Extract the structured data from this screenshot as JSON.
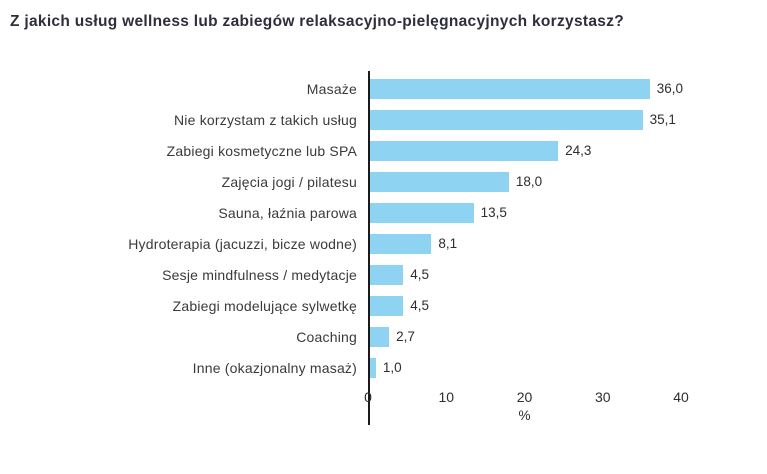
{
  "title": "Z jakich usług wellness lub zabiegów relaksacyjno-pielęgnacyjnych korzystasz?",
  "chart_data": {
    "type": "bar",
    "orientation": "horizontal",
    "title": "Z jakich usług wellness lub zabiegów relaksacyjno-pielęgnacyjnych korzystasz?",
    "categories": [
      "Masaże",
      "Nie korzystam z takich usług",
      "Zabiegi kosmetyczne lub SPA",
      "Zajęcia jogi / pilatesu",
      "Sauna, łaźnia parowa",
      "Hydroterapia (jacuzzi, bicze wodne)",
      "Sesje mindfulness / medytacje",
      "Zabiegi modelujące sylwetkę",
      "Coaching",
      "Inne (okazjonalny masaż)"
    ],
    "values": [
      36.0,
      35.1,
      24.3,
      18.0,
      13.5,
      8.1,
      4.5,
      4.5,
      2.7,
      1.0
    ],
    "value_labels": [
      "36,0",
      "35,1",
      "24,3",
      "18,0",
      "13,5",
      "8,1",
      "4,5",
      "4,5",
      "2,7",
      "1,0"
    ],
    "xlabel": "%",
    "ylabel": "",
    "xlim": [
      0,
      40
    ],
    "xticks": [
      0,
      10,
      20,
      30,
      40
    ],
    "xtick_labels": [
      "0",
      "10",
      "20",
      "30",
      "40"
    ],
    "bar_color": "#8FD3F2",
    "axis_color": "#1a1a1a",
    "grid": false,
    "legend": "none"
  }
}
